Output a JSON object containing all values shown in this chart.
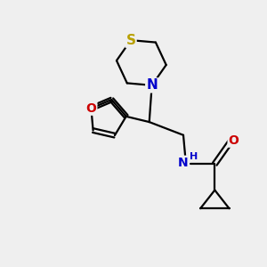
{
  "bg_color": "#efefef",
  "bond_color": "#000000",
  "S_color": "#b8a000",
  "N_color": "#0000cc",
  "O_color": "#cc0000",
  "line_width": 1.6,
  "figsize": [
    3.0,
    3.0
  ],
  "dpi": 100,
  "xlim": [
    0,
    10
  ],
  "ylim": [
    0,
    10
  ]
}
